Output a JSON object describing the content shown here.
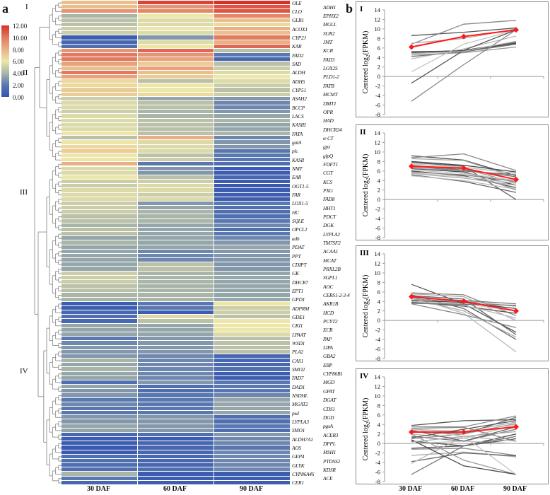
{
  "figure": {
    "label_a": "a",
    "label_b": "b"
  },
  "legend": {
    "ticks": [
      "12.00",
      "10.00",
      "8.00",
      "6.00",
      "4.00",
      "2.00",
      "0.00"
    ]
  },
  "colors": {
    "high": "#d7302a",
    "mid": "#ece6a8",
    "low": "#3355b0",
    "mean_line": "#ff1a1a"
  },
  "chart_data": [
    {
      "type": "heatmap",
      "title": "",
      "columns": [
        "30 DAF",
        "60 DAF",
        "90 DAF"
      ],
      "value_range": [
        0,
        12
      ],
      "clusters": [
        {
          "name": "I",
          "start": 0,
          "end": 10
        },
        {
          "name": "II",
          "start": 11,
          "end": 36
        },
        {
          "name": "III",
          "start": 37,
          "end": 68
        },
        {
          "name": "IV",
          "start": 69,
          "end": 110
        }
      ],
      "genes": [
        "OLE",
        "ADH1",
        "CLO",
        "EPHX2",
        "GLB1",
        "MGLL",
        "ACOX1",
        "SUR2",
        "CYP2J",
        "JMT",
        "KAR",
        "KCR",
        "FAD2",
        "FAD3",
        "SAD",
        "LOX2S",
        "ALDH",
        "PLD1-2",
        "ADH5",
        "FATB",
        "CYP51",
        "MCMT",
        "ASAH2",
        "DMT1",
        "BCCP",
        "OPR",
        "LACS",
        "HAD",
        "KASIII",
        "DHCR24",
        "FATA",
        "α-CT",
        "galA",
        "gpx",
        "plc",
        "glpQ",
        "KASII",
        "FDFT1",
        "NMT",
        "CGT",
        "EAR",
        "KCS",
        "OGT1-5",
        "PXG",
        "FAR",
        "FAD8",
        "LOX1-5",
        "HHT1",
        "HC",
        "PDCT",
        "SQLE",
        "DGK",
        "OPCL1",
        "LYPLA2",
        "adh",
        "TM7SF2",
        "PDAT",
        "ACAA1",
        "PPT",
        "MCAT",
        "CDIPT",
        "PRXL2B",
        "GK",
        "SGPL1",
        "DHCR7",
        "AOC",
        "EPT1",
        "CERS1-2-3-4",
        "GPD1",
        "AKR1B",
        "ADPRM",
        "HCD",
        "GDE1",
        "PCYT2",
        "CKI1",
        "ECR",
        "LPAAT",
        "PAP",
        "WSD1",
        "LIPA",
        "PLA2",
        "GBA2",
        "CAS1",
        "EBP",
        "SMO2",
        "CYP86B1",
        "FAD7",
        "MGD",
        "DAD1",
        "GPAT",
        "NSDHL",
        "DGAT",
        "MGAT2",
        "CDS1",
        "psd",
        "DGD",
        "LYPLA3",
        "pgsA",
        "SMO1",
        "ACER3",
        "ALDH7A1",
        "DPPL",
        "AOS",
        "MSH1",
        "GEP4",
        "PTDSS2",
        "GLYK",
        "KDSR",
        "CYP86A4S",
        "ACE",
        "CER1"
      ],
      "values": [
        [
          7.5,
          11.5,
          12
        ],
        [
          7.5,
          9,
          11
        ],
        [
          9,
          9.5,
          11
        ],
        [
          4,
          6,
          9.5
        ],
        [
          4.5,
          5.5,
          7.5
        ],
        [
          4.5,
          5.5,
          6.5
        ],
        [
          5,
          6,
          8
        ],
        [
          5,
          5.5,
          7.5
        ],
        [
          0.5,
          3,
          10
        ],
        [
          1,
          5.5,
          8
        ],
        [
          1.5,
          6,
          10.5
        ],
        [
          9,
          10.5,
          4.5
        ],
        [
          10,
          9,
          2
        ],
        [
          10,
          8.5,
          1
        ],
        [
          8.5,
          7,
          4.5
        ],
        [
          7.5,
          8.5,
          5
        ],
        [
          10,
          7.5,
          5.5
        ],
        [
          8.5,
          7,
          6
        ],
        [
          6.5,
          4.5,
          5.5
        ],
        [
          6.5,
          6,
          5
        ],
        [
          7,
          6,
          4.5
        ],
        [
          7,
          6.5,
          5
        ],
        [
          5,
          3.5,
          3
        ],
        [
          5.5,
          4.5,
          2.5
        ],
        [
          5.5,
          4.5,
          2.5
        ],
        [
          5,
          4,
          3
        ],
        [
          5.5,
          4,
          3.5
        ],
        [
          5.5,
          4.5,
          4
        ],
        [
          5.5,
          4.5,
          3.5
        ],
        [
          5.5,
          4.5,
          3.5
        ],
        [
          6,
          4.5,
          4
        ],
        [
          4.5,
          8,
          2.5
        ],
        [
          6,
          5.5,
          3
        ],
        [
          6.5,
          5.5,
          3
        ],
        [
          7,
          5.5,
          2
        ],
        [
          6,
          4.5,
          2
        ],
        [
          6,
          5,
          2
        ],
        [
          8,
          2,
          1.5
        ],
        [
          5.5,
          3,
          0.5
        ],
        [
          5.5,
          3,
          0.5
        ],
        [
          6,
          4.5,
          1
        ],
        [
          5,
          5,
          0.5
        ],
        [
          5,
          5.5,
          0.3
        ],
        [
          5.5,
          5.5,
          0.5
        ],
        [
          5.5,
          5,
          0.5
        ],
        [
          5.5,
          5.5,
          0.5
        ],
        [
          5,
          3,
          2
        ],
        [
          5,
          3.5,
          1.5
        ],
        [
          5,
          4,
          1.5
        ],
        [
          4.5,
          4,
          1.5
        ],
        [
          4.5,
          4,
          2
        ],
        [
          4,
          3.5,
          2.5
        ],
        [
          4.5,
          3.5,
          1.5
        ],
        [
          4.5,
          3.5,
          2
        ],
        [
          3.5,
          3.5,
          2.5
        ],
        [
          4,
          3.5,
          3
        ],
        [
          3.5,
          3.5,
          3.5
        ],
        [
          3.5,
          2.5,
          3
        ],
        [
          3.5,
          2.5,
          3
        ],
        [
          3.5,
          2.5,
          3
        ],
        [
          3.5,
          4.5,
          3
        ],
        [
          3.5,
          4.5,
          3
        ],
        [
          5,
          4,
          3.5
        ],
        [
          5,
          4,
          3.5
        ],
        [
          5,
          4,
          3.5
        ],
        [
          4.5,
          4,
          3.5
        ],
        [
          4.5,
          4,
          3.5
        ],
        [
          4,
          4,
          3.5
        ],
        [
          4,
          4,
          3.5
        ],
        [
          0.5,
          2,
          6
        ],
        [
          0.5,
          2,
          5
        ],
        [
          1,
          0.5,
          5
        ],
        [
          1.5,
          5.5,
          4.5
        ],
        [
          1,
          4.5,
          6
        ],
        [
          3.5,
          3.5,
          6
        ],
        [
          3.5,
          3.5,
          6
        ],
        [
          3.5,
          3.5,
          5.5
        ],
        [
          2,
          3,
          4.5
        ],
        [
          2.5,
          3,
          4.5
        ],
        [
          3,
          3,
          4.5
        ],
        [
          3,
          3,
          4.5
        ],
        [
          3,
          2.5,
          1
        ],
        [
          4,
          2.5,
          1
        ],
        [
          3.5,
          2.5,
          1
        ],
        [
          4,
          2.5,
          1.5
        ],
        [
          3.5,
          2.5,
          0.5
        ],
        [
          3.5,
          2.5,
          0.5
        ],
        [
          1.5,
          3,
          2
        ],
        [
          3.5,
          1.5,
          2
        ],
        [
          3,
          1.5,
          2
        ],
        [
          3,
          2,
          2.5
        ],
        [
          2,
          2,
          3.5
        ],
        [
          2.5,
          2,
          3.5
        ],
        [
          2,
          2,
          3.5
        ],
        [
          2,
          2,
          3.5
        ],
        [
          3,
          3,
          1.5
        ],
        [
          3,
          3,
          1.5
        ],
        [
          3.5,
          3,
          2
        ],
        [
          3.5,
          3,
          1.5
        ],
        [
          1,
          1.5,
          3
        ],
        [
          0.5,
          0.5,
          2.5
        ],
        [
          0.5,
          1,
          2.5
        ],
        [
          0.3,
          1,
          2
        ],
        [
          0.3,
          1,
          2.5
        ],
        [
          1.5,
          1,
          2.5
        ],
        [
          1.5,
          1,
          2.5
        ],
        [
          1.5,
          1,
          2.5
        ],
        [
          1.5,
          1.5,
          2.5
        ],
        [
          4,
          0.5,
          0.5
        ],
        [
          2,
          0.5,
          0.5
        ],
        [
          1,
          0.5,
          0.5
        ]
      ]
    },
    {
      "type": "line",
      "panel": "I",
      "x": [
        "30 DAF",
        "60 DAF",
        "90 DAF"
      ],
      "ylabel": "Centered log",
      "ylabel_sub": "2",
      "ylabel_suffix": "(FPKM)",
      "ylim": [
        -8,
        14
      ],
      "yticks": [
        "14",
        "12",
        "10",
        "8",
        "6",
        "4",
        "2",
        "0",
        "-2",
        "-4",
        "-6",
        "-8"
      ],
      "mean": [
        6.2,
        8.4,
        9.8
      ],
      "series": [
        [
          8.6,
          9.3,
          10.2
        ],
        [
          6.8,
          11,
          11.8
        ],
        [
          7,
          8,
          10
        ],
        [
          5,
          5.5,
          7.2
        ],
        [
          3.7,
          5.8,
          8.5
        ],
        [
          4.2,
          5.2,
          6.8
        ],
        [
          4.5,
          5,
          6.2
        ],
        [
          5.2,
          5.4,
          7
        ],
        [
          1,
          6.8,
          9.8
        ],
        [
          -1.4,
          5.5,
          9.8
        ],
        [
          -5.2,
          2.5,
          9.8
        ],
        [
          4.8,
          5.3,
          7.4
        ]
      ]
    },
    {
      "type": "line",
      "panel": "II",
      "x": [
        "30 DAF",
        "60 DAF",
        "90 DAF"
      ],
      "ylabel": "Centered log",
      "ylabel_sub": "2",
      "ylabel_suffix": "(FPKM)",
      "ylim": [
        -8,
        14
      ],
      "yticks": [
        "14",
        "12",
        "10",
        "8",
        "6",
        "4",
        "2",
        "0",
        "-2",
        "-4",
        "-6",
        "-8"
      ],
      "mean": [
        7,
        6.6,
        4.2
      ],
      "series": [
        [
          9.2,
          8.3,
          5
        ],
        [
          8.8,
          9.6,
          6.1
        ],
        [
          8.6,
          8.2,
          4.6
        ],
        [
          7.8,
          7,
          0
        ],
        [
          7.5,
          6.8,
          5.5
        ],
        [
          7,
          6,
          5.2
        ],
        [
          6.8,
          6.5,
          3.5
        ],
        [
          6.5,
          5.8,
          3
        ],
        [
          6.2,
          5.5,
          4
        ],
        [
          6,
          5,
          2.5
        ],
        [
          5.8,
          5.2,
          3.8
        ],
        [
          5.5,
          4.5,
          3
        ],
        [
          5.2,
          3.8,
          1.5
        ],
        [
          5,
          4,
          2.2
        ],
        [
          7.2,
          6.2,
          4.8
        ],
        [
          6.6,
          6,
          2
        ],
        [
          8,
          7.2,
          5.8
        ],
        [
          5.6,
          4.8,
          3.4
        ]
      ]
    },
    {
      "type": "line",
      "panel": "III",
      "x": [
        "30 DAF",
        "60 DAF",
        "90 DAF"
      ],
      "ylabel": "Centered log",
      "ylabel_sub": "2",
      "ylabel_suffix": "(FPKM)",
      "ylim": [
        -8,
        14
      ],
      "yticks": [
        "14",
        "12",
        "10",
        "8",
        "6",
        "4",
        "2",
        "0",
        "-2",
        "-4",
        "-6",
        "-8"
      ],
      "mean": [
        5,
        4,
        2
      ],
      "series": [
        [
          7.6,
          3.5,
          -2.5
        ],
        [
          5.8,
          5.4,
          1
        ],
        [
          5.6,
          5,
          0
        ],
        [
          5.4,
          2.5,
          -4
        ],
        [
          5,
          1.5,
          -6.6
        ],
        [
          4.8,
          4.2,
          3.5
        ],
        [
          4.5,
          4,
          3
        ],
        [
          4.2,
          3.8,
          2.5
        ],
        [
          4,
          3.5,
          2
        ],
        [
          3.8,
          3,
          1.5
        ],
        [
          3.5,
          1.2,
          -1.5
        ],
        [
          4.6,
          2,
          -3.5
        ],
        [
          5.2,
          4.5,
          -3
        ],
        [
          4,
          3.2,
          0.5
        ],
        [
          3.6,
          3.4,
          3.2
        ]
      ]
    },
    {
      "type": "line",
      "panel": "IV",
      "x": [
        "30 DAF",
        "60 DAF",
        "90 DAF"
      ],
      "ylabel": "Centered log",
      "ylabel_sub": "2",
      "ylabel_suffix": "(FPKM)",
      "ylim": [
        -8,
        14
      ],
      "yticks": [
        "14",
        "12",
        "10",
        "8",
        "6",
        "4",
        "2",
        "0",
        "-2",
        "-4",
        "-6",
        "-8"
      ],
      "mean": [
        2.4,
        2.4,
        3.5
      ],
      "series": [
        [
          3.8,
          4.8,
          5
        ],
        [
          3.5,
          3.5,
          5.8
        ],
        [
          3,
          2.5,
          4.5
        ],
        [
          2.5,
          2,
          5.5
        ],
        [
          2,
          1,
          4
        ],
        [
          1.5,
          0.5,
          3
        ],
        [
          1,
          2,
          4.2
        ],
        [
          0.5,
          -0.5,
          2
        ],
        [
          0,
          0.5,
          0
        ],
        [
          -1,
          -0.5,
          1
        ],
        [
          -1.2,
          -1,
          -2.5
        ],
        [
          -2.5,
          -1.8,
          -2.8
        ],
        [
          -3.8,
          -2,
          -2.6
        ],
        [
          -4.2,
          1.5,
          0.5
        ],
        [
          -6.5,
          -0.5,
          1.5
        ],
        [
          2,
          -3.5,
          -6.5
        ],
        [
          0.8,
          -4.7,
          -6.5
        ],
        [
          3,
          1.5,
          -6.5
        ],
        [
          1.2,
          3,
          4.8
        ],
        [
          3.2,
          3.4,
          0.5
        ],
        [
          0.3,
          1.5,
          2.5
        ],
        [
          2.8,
          0.5,
          3.5
        ]
      ]
    }
  ]
}
